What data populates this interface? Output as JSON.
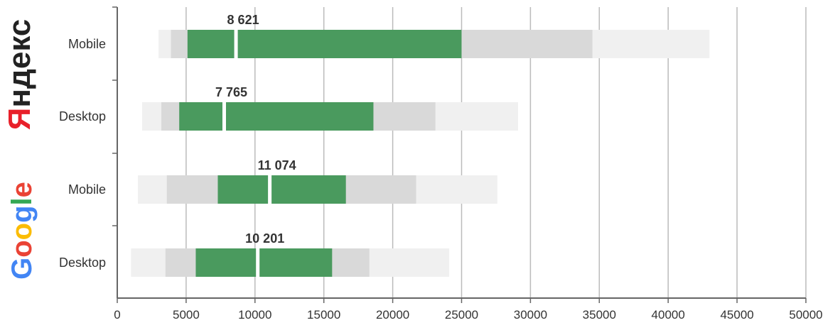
{
  "chart_data": {
    "type": "bar",
    "subtype": "box-range",
    "xlim": [
      0,
      50000
    ],
    "xticks": [
      0,
      5000,
      10000,
      15000,
      20000,
      25000,
      30000,
      35000,
      40000,
      45000,
      50000
    ],
    "grid": true,
    "colors": {
      "outer": "#f0f0f0",
      "inner": "#d9d9d9",
      "core": "#4a9a5e",
      "median_gap": "#ffffff",
      "axis": "#666666",
      "grid": "#bbbbbb"
    },
    "groups": [
      {
        "name": "Яндекс",
        "logo_icon": "yandex-logo-icon"
      },
      {
        "name": "Google",
        "logo_icon": "google-logo-icon"
      }
    ],
    "rows": [
      {
        "group": 0,
        "category": "Mobile",
        "outer": [
          3000,
          43000
        ],
        "inner": [
          3900,
          34500
        ],
        "core": [
          5100,
          25000
        ],
        "median": 8621,
        "median_label": "8 621"
      },
      {
        "group": 0,
        "category": "Desktop",
        "outer": [
          1800,
          29100
        ],
        "inner": [
          3200,
          23100
        ],
        "core": [
          4500,
          18600
        ],
        "median": 7765,
        "median_label": "7 765"
      },
      {
        "group": 1,
        "category": "Mobile",
        "outer": [
          1500,
          27600
        ],
        "inner": [
          3600,
          21700
        ],
        "core": [
          7300,
          16600
        ],
        "median": 11074,
        "median_label": "11 074"
      },
      {
        "group": 1,
        "category": "Desktop",
        "outer": [
          1000,
          24100
        ],
        "inner": [
          3500,
          18300
        ],
        "core": [
          5700,
          15600
        ],
        "median": 10201,
        "median_label": "10 201"
      }
    ]
  }
}
